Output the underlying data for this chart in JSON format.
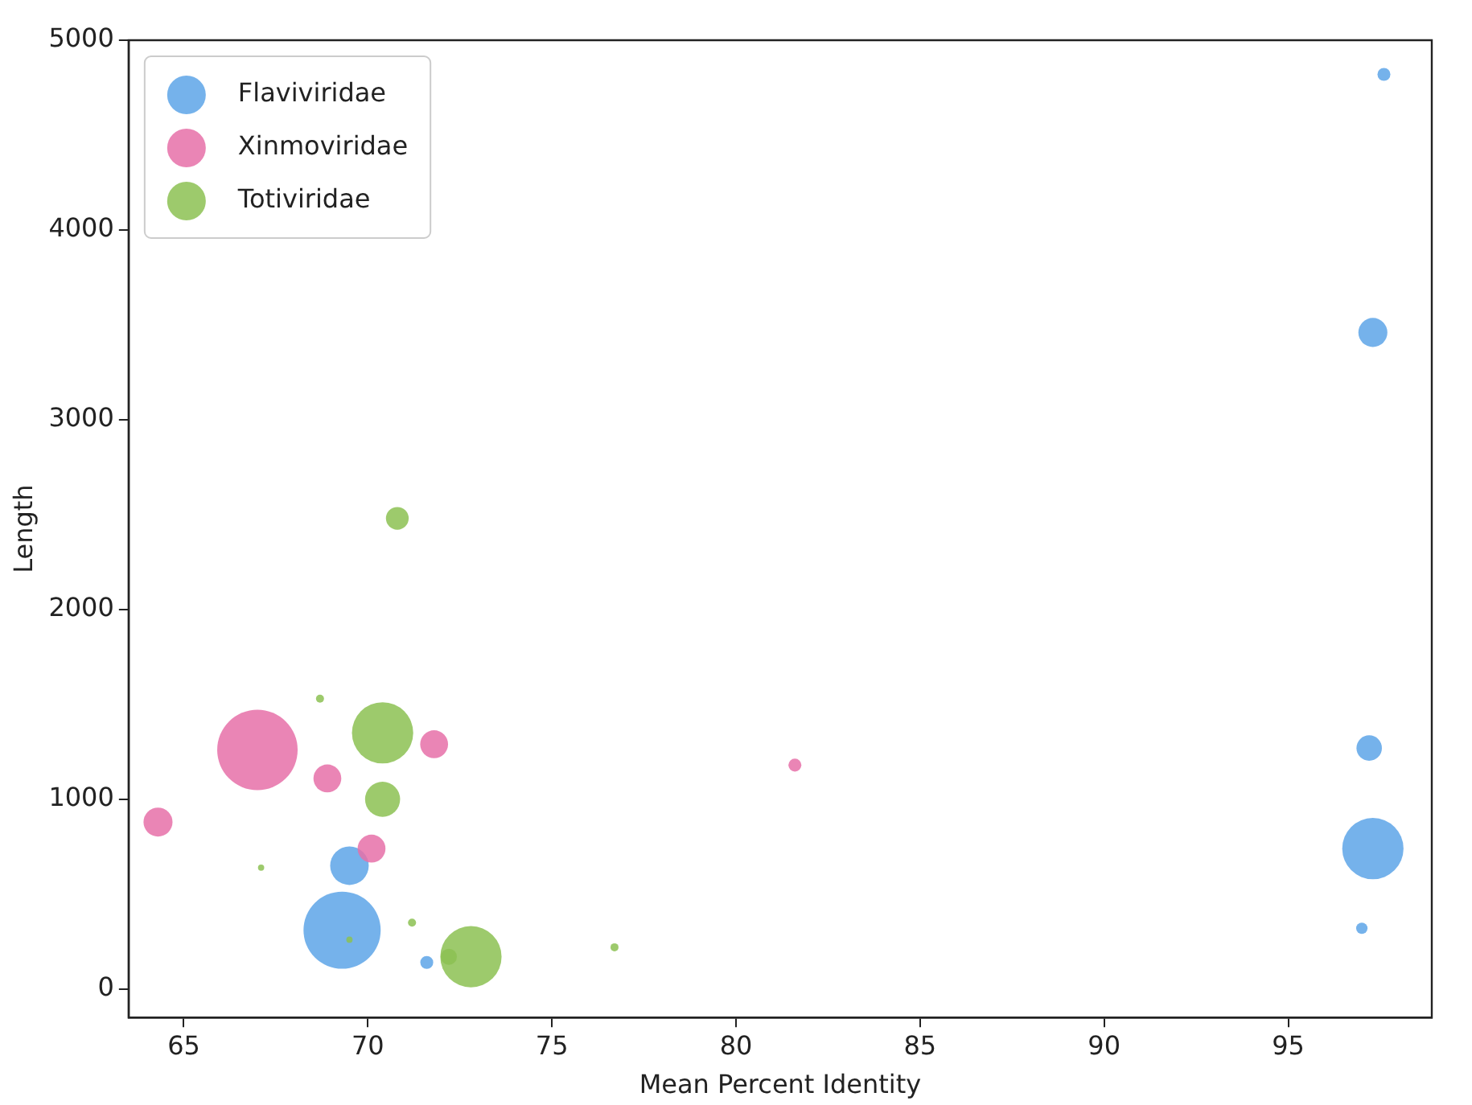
{
  "chart_data": {
    "type": "bubble",
    "xlabel": "Mean Percent Identity",
    "ylabel": "Length",
    "xlim": [
      63.5,
      98.9
    ],
    "xticks": [
      65,
      70,
      75,
      80,
      85,
      90,
      95
    ],
    "ylim": [
      -150,
      5000
    ],
    "yticks": [
      0,
      1000,
      2000,
      3000,
      4000,
      5000
    ],
    "grid": false,
    "legend": "top left",
    "series": [
      {
        "name": "Flaviviridae",
        "color": "#5da5e8",
        "x": [
          97.6,
          97.3,
          97.2,
          97.3,
          97.0,
          69.5,
          69.3,
          71.6
        ],
        "values": [
          4820,
          3460,
          1270,
          740,
          320,
          650,
          310,
          140
        ],
        "sizes": [
          0.026,
          0.13,
          0.1,
          0.58,
          0.02,
          0.23,
          0.92,
          0.026
        ]
      },
      {
        "name": "Xinmoviridae",
        "color": "#e670a8",
        "x": [
          64.3,
          67.0,
          68.9,
          71.8,
          70.1,
          81.6
        ],
        "values": [
          880,
          1260,
          1110,
          1290,
          740,
          1180
        ],
        "sizes": [
          0.13,
          1,
          0.12,
          0.12,
          0.12,
          0.026
        ]
      },
      {
        "name": "Totiviridae",
        "color": "#8cc152",
        "x": [
          70.8,
          70.4,
          70.4,
          72.8,
          72.2,
          68.7,
          67.1,
          71.2,
          76.7,
          69.5
        ],
        "values": [
          2480,
          1350,
          1000,
          170,
          170,
          1530,
          640,
          350,
          220,
          260
        ],
        "sizes": [
          0.08,
          0.58,
          0.19,
          0.58,
          0.04,
          0.01,
          0.006,
          0.01,
          0.01,
          0.006
        ]
      }
    ]
  }
}
